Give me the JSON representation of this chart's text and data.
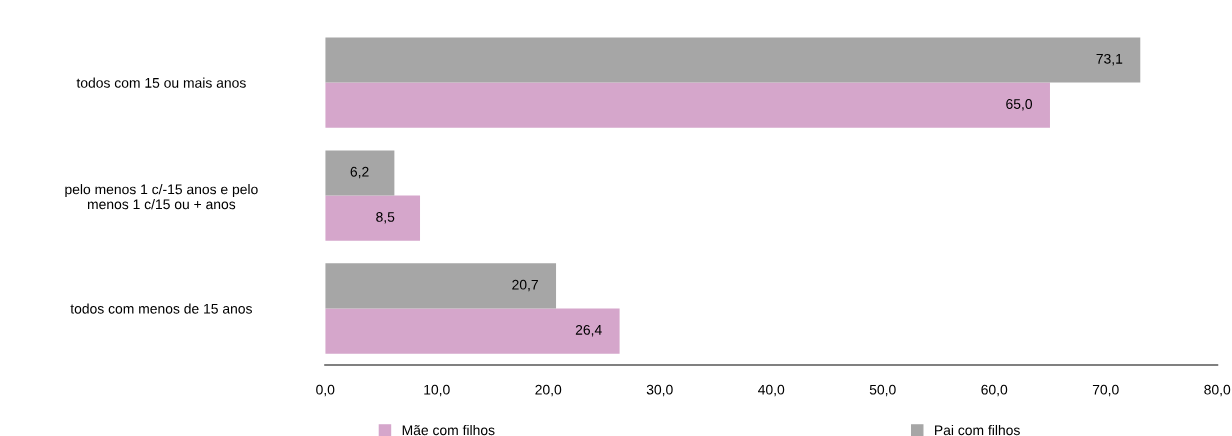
{
  "chart_data": {
    "type": "bar",
    "orientation": "horizontal",
    "categories": [
      "todos com 15 ou mais anos",
      "pelo menos 1 c/-15 anos e pelo\nmenos 1 c/15 ou + anos",
      "todos com menos de 15 anos"
    ],
    "series": [
      {
        "name": "Mãe com filhos",
        "color": "#d5a6cb",
        "values": [
          65.0,
          8.5,
          26.4
        ],
        "value_labels": [
          "65,0",
          "8,5",
          "26,4"
        ]
      },
      {
        "name": "Pai com filhos",
        "color": "#a6a6a6",
        "values": [
          73.1,
          6.2,
          20.7
        ],
        "value_labels": [
          "73,1",
          "6,2",
          "20,7"
        ]
      }
    ],
    "xlim": [
      0,
      80
    ],
    "xticks": [
      {
        "value": 0,
        "label": "0,0"
      },
      {
        "value": 10,
        "label": "10,0"
      },
      {
        "value": 20,
        "label": "20,0"
      },
      {
        "value": 30,
        "label": "30,0"
      },
      {
        "value": 40,
        "label": "40,0"
      },
      {
        "value": 50,
        "label": "50,0"
      },
      {
        "value": 60,
        "label": "60,0"
      },
      {
        "value": 70,
        "label": "70,0"
      },
      {
        "value": 80,
        "label": "80,0"
      }
    ],
    "grid": false,
    "legend": "bottom"
  }
}
